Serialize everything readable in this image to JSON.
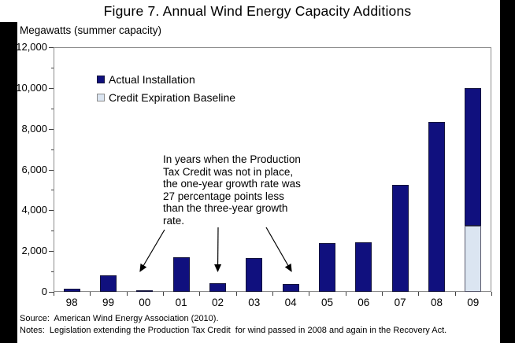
{
  "title": "Figure 7. Annual Wind Energy Capacity Additions",
  "y_axis_caption": "Megawatts (summer capacity)",
  "source_line": "Source:  American Wind Energy Association (2010).",
  "notes_line": "Notes:  Legislation extending the Production Tax Credit  for wind passed in 2008 and again in the Recovery Act.",
  "colors": {
    "actual": "#10107e",
    "baseline": "#dbe5f1",
    "bar_border": "#14143c",
    "plot_border": "#8c8c8c",
    "tick": "#404040",
    "side_band": "#000000",
    "arrow": "#000000"
  },
  "legend": {
    "items": [
      {
        "label": "Actual Installation",
        "color": "#10107e",
        "border": "#14143c"
      },
      {
        "label": "Credit Expiration Baseline",
        "color": "#dbe5f1",
        "border": "#8c8c8c"
      }
    ]
  },
  "annotation": {
    "lines": [
      "In years when the Production",
      "Tax Credit was not in place,",
      "the one-year growth rate was",
      "27 percentage points less",
      "than the three-year growth",
      "rate."
    ],
    "points_to_years": [
      "00",
      "02",
      "04"
    ]
  },
  "chart_data": {
    "type": "bar",
    "stacked": true,
    "title": "Figure 7. Annual Wind Energy Capacity Additions",
    "ylabel": "Megawatts (summer capacity)",
    "xlabel": "",
    "categories": [
      "98",
      "99",
      "00",
      "01",
      "02",
      "03",
      "04",
      "05",
      "06",
      "07",
      "08",
      "09"
    ],
    "series": [
      {
        "name": "Credit Expiration Baseline",
        "color": "#dbe5f1",
        "values": [
          0,
          0,
          0,
          0,
          0,
          0,
          0,
          0,
          0,
          0,
          0,
          3250
        ]
      },
      {
        "name": "Actual Installation",
        "color": "#10107e",
        "values": [
          150,
          800,
          70,
          1700,
          430,
          1650,
          390,
          2400,
          2450,
          5250,
          8350,
          6750
        ]
      }
    ],
    "stack_note": "2009 bar is stacked: baseline 3,250 MW at bottom, actual portion above reaching 10,000 MW total",
    "ylim": [
      0,
      12000
    ],
    "y_major_step": 2000,
    "y_minor_step": 1000,
    "y_tick_labels": [
      "0",
      "2,000",
      "4,000",
      "6,000",
      "8,000",
      "10,000",
      "12,000"
    ],
    "grid": false,
    "legend_position": "inside-top-left"
  }
}
